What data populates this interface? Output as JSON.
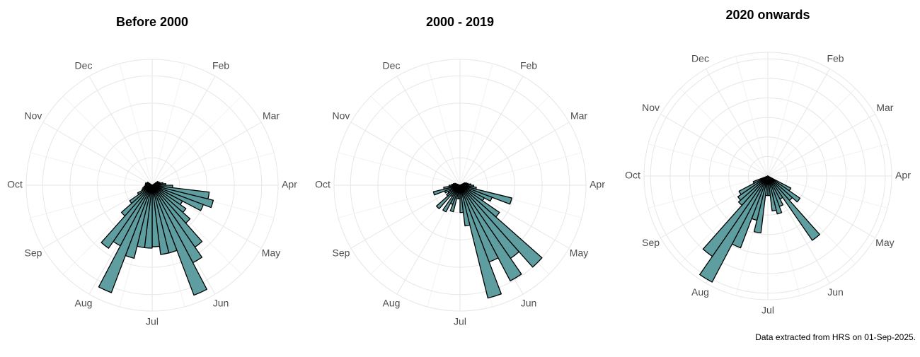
{
  "chart_data": [
    {
      "type": "polar-bar",
      "title": "Before 2000",
      "color": "#5f9ea0",
      "month_labels": [
        "Feb",
        "Mar",
        "Apr",
        "May",
        "Jun",
        "Jul",
        "Aug",
        "Sep",
        "Oct",
        "Nov",
        "Dec"
      ],
      "ylim": [
        0,
        9.2
      ],
      "yticks": [
        2,
        4,
        6,
        8
      ],
      "values": [
        0,
        0,
        0,
        0,
        0,
        0,
        0,
        0,
        0.5,
        0.5,
        0.6,
        0.8,
        1,
        1.5,
        4.2,
        4.6,
        4.0,
        2.5,
        3.0,
        3.7,
        5.5,
        6.4,
        8.6,
        5.1,
        5.1,
        4.5,
        4.6,
        4.6,
        5.5,
        8.4,
        5.0,
        5.6,
        3.0,
        2.0,
        1.2,
        0.8,
        0.7,
        0.6,
        0.5,
        0.5,
        0.5,
        0.5,
        0.4,
        0.4,
        0,
        0,
        0,
        0,
        0,
        0,
        0,
        0
      ]
    },
    {
      "type": "polar-bar",
      "title": "2000 - 2019",
      "color": "#5f9ea0",
      "month_labels": [
        "Feb",
        "Mar",
        "Apr",
        "May",
        "Jun",
        "Jul",
        "Aug",
        "Sep",
        "Oct",
        "Nov",
        "Dec"
      ],
      "ylim": [
        0,
        9.2
      ],
      "yticks": [
        2,
        4,
        6,
        8
      ],
      "values": [
        0,
        0,
        0,
        0,
        0,
        0,
        0,
        0,
        0,
        0.4,
        0.5,
        0.6,
        0.8,
        1,
        1.2,
        3.9,
        2.5,
        2.0,
        3.5,
        8.0,
        6.5,
        7.9,
        6.0,
        8.5,
        3.0,
        2.0,
        1.0,
        1.0,
        2.0,
        1.5,
        2.2,
        1.0,
        2.3,
        1.2,
        1.0,
        1.2,
        2.0,
        1.2,
        0.8,
        0.6,
        0.5,
        0.4,
        0,
        0,
        0,
        0,
        0,
        0,
        0,
        0,
        0,
        0
      ]
    },
    {
      "type": "polar-bar",
      "title": "2020 onwards",
      "color": "#5f9ea0",
      "month_labels": [
        "Feb",
        "Mar",
        "Apr",
        "May",
        "Jun",
        "Jul",
        "Aug",
        "Sep",
        "Oct",
        "Nov",
        "Dec"
      ],
      "ylim": [
        0,
        9.5
      ],
      "yticks": [
        1.5,
        3,
        4.5,
        6,
        7.5,
        9
      ],
      "values": [
        0,
        0,
        0,
        0,
        0,
        0,
        0,
        0,
        0,
        0,
        0,
        0,
        0,
        0,
        0,
        0,
        0,
        2.0,
        3.0,
        2.5,
        6.0,
        2.0,
        2.5,
        3.0,
        2.7,
        1.5,
        1.5,
        4.4,
        3.5,
        5.9,
        9.2,
        7.5,
        3.0,
        2.8,
        2.5,
        1.2,
        0,
        0,
        0,
        0,
        0,
        0,
        0,
        0,
        0,
        0,
        0,
        0,
        0,
        0,
        0,
        0
      ]
    }
  ],
  "caption": "Data extracted from HRS on 01-Sep-2025."
}
